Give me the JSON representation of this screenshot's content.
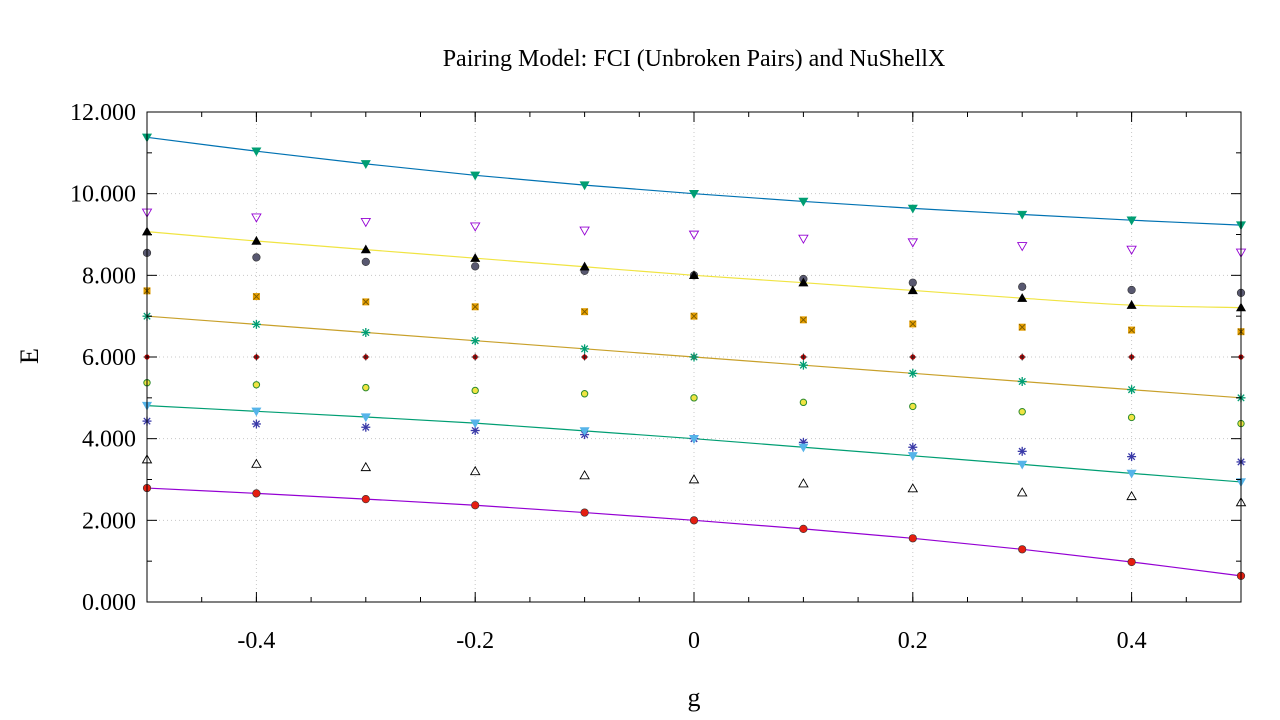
{
  "chart_data": {
    "type": "scatter",
    "title": "Pairing Model: FCI (Unbroken Pairs) and NuShellX",
    "xlabel": "g",
    "ylabel": "E",
    "xlim": [
      -0.5,
      0.5
    ],
    "ylim": [
      0,
      12
    ],
    "x_ticks": [
      -0.4,
      -0.2,
      0,
      0.2,
      0.4
    ],
    "x_tick_labels": [
      "-0.4",
      "-0.2",
      "0",
      "0.2",
      "0.4"
    ],
    "y_ticks": [
      0,
      2,
      4,
      6,
      8,
      10,
      12
    ],
    "y_tick_labels": [
      "0.000",
      "2.000",
      "4.000",
      "6.000",
      "8.000",
      "10.000",
      "12.000"
    ],
    "grid": true,
    "x": [
      -0.5,
      -0.4,
      -0.3,
      -0.2,
      -0.1,
      0.0,
      0.1,
      0.2,
      0.3,
      0.4,
      0.5
    ],
    "lines": [
      {
        "color": "#9400d3",
        "values": [
          2.79,
          2.66,
          2.52,
          2.37,
          2.19,
          2.0,
          1.79,
          1.56,
          1.29,
          0.98,
          0.64
        ]
      },
      {
        "color": "#009e73",
        "values": [
          4.81,
          4.67,
          4.53,
          4.38,
          4.19,
          4.0,
          3.79,
          3.58,
          3.37,
          3.15,
          2.94
        ]
      },
      {
        "color": "#c8a02a",
        "values": [
          7.0,
          6.8,
          6.6,
          6.4,
          6.2,
          6.0,
          5.8,
          5.6,
          5.4,
          5.2,
          5.0
        ]
      },
      {
        "color": "#f0e442",
        "values": [
          9.07,
          8.84,
          8.63,
          8.42,
          8.21,
          8.0,
          7.82,
          7.63,
          7.44,
          7.27,
          7.21
        ]
      },
      {
        "color": "#0072b2",
        "values": [
          11.38,
          11.04,
          10.73,
          10.45,
          10.21,
          10.0,
          9.81,
          9.64,
          9.49,
          9.35,
          9.23
        ]
      }
    ],
    "series": [
      {
        "marker": "circle-filled",
        "color": "#e51e10",
        "values": [
          2.79,
          2.66,
          2.52,
          2.37,
          2.19,
          2.0,
          1.79,
          1.56,
          1.29,
          0.98,
          0.64
        ]
      },
      {
        "marker": "triangle-up-open",
        "color": "#000000",
        "values": [
          3.49,
          3.38,
          3.3,
          3.2,
          3.1,
          3.0,
          2.9,
          2.78,
          2.68,
          2.59,
          2.44
        ]
      },
      {
        "marker": "star",
        "color": "#3a3aa8",
        "values": [
          4.43,
          4.36,
          4.28,
          4.2,
          4.1,
          4.0,
          3.91,
          3.79,
          3.69,
          3.56,
          3.43
        ]
      },
      {
        "marker": "triangle-down-filled",
        "color": "#56b4e9",
        "values": [
          4.81,
          4.67,
          4.53,
          4.38,
          4.19,
          4.0,
          3.79,
          3.58,
          3.37,
          3.15,
          2.94
        ]
      },
      {
        "marker": "circle-open",
        "color": "#2e8b2e",
        "fill": "#f0e442",
        "values": [
          5.37,
          5.32,
          5.25,
          5.18,
          5.1,
          5.0,
          4.89,
          4.79,
          4.66,
          4.52,
          4.37
        ]
      },
      {
        "marker": "plus-dot",
        "color": "#c80000",
        "values": [
          6.0,
          6.0,
          6.0,
          6.0,
          6.0,
          6.0,
          6.0,
          6.0,
          6.0,
          6.0,
          6.0
        ]
      },
      {
        "marker": "star",
        "color": "#009e73",
        "values": [
          7.0,
          6.8,
          6.6,
          6.4,
          6.2,
          6.0,
          5.8,
          5.6,
          5.4,
          5.2,
          5.0
        ]
      },
      {
        "marker": "square-x",
        "color": "#e69f00",
        "values": [
          7.62,
          7.48,
          7.35,
          7.23,
          7.11,
          7.0,
          6.91,
          6.81,
          6.73,
          6.66,
          6.62
        ]
      },
      {
        "marker": "circle-filled",
        "color": "#585870",
        "values": [
          8.55,
          8.44,
          8.33,
          8.22,
          8.11,
          8.0,
          7.91,
          7.82,
          7.72,
          7.64,
          7.57
        ]
      },
      {
        "marker": "triangle-up-filled",
        "color": "#000000",
        "values": [
          9.07,
          8.84,
          8.63,
          8.42,
          8.21,
          8.0,
          7.82,
          7.63,
          7.44,
          7.27,
          7.21
        ]
      },
      {
        "marker": "triangle-down-open",
        "color": "#9400d3",
        "values": [
          9.54,
          9.42,
          9.31,
          9.2,
          9.1,
          9.0,
          8.9,
          8.81,
          8.72,
          8.63,
          8.56
        ]
      },
      {
        "marker": "triangle-down-filled",
        "color": "#009e73",
        "values": [
          11.38,
          11.04,
          10.73,
          10.45,
          10.21,
          10.0,
          9.81,
          9.64,
          9.49,
          9.35,
          9.23
        ]
      }
    ]
  }
}
